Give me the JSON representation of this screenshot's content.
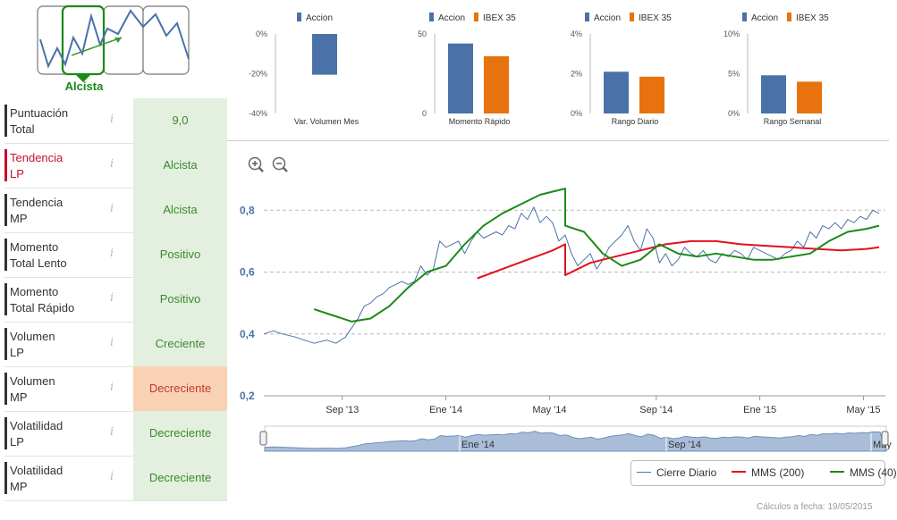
{
  "trend_widget": {
    "label": "Alcista"
  },
  "indicators": [
    {
      "label": "Puntuación Total",
      "line1": "Puntuación",
      "line2": "Total",
      "value": "9,0",
      "status": "green",
      "highlight": false
    },
    {
      "label": "Tendencia LP",
      "line1": "Tendencia",
      "line2": "LP",
      "value": "Alcista",
      "status": "green",
      "highlight": true
    },
    {
      "label": "Tendencia MP",
      "line1": "Tendencia",
      "line2": "MP",
      "value": "Alcista",
      "status": "green",
      "highlight": false
    },
    {
      "label": "Momento Total Lento",
      "line1": "Momento",
      "line2": "Total Lento",
      "value": "Positivo",
      "status": "green",
      "highlight": false
    },
    {
      "label": "Momento Total Rápido",
      "line1": "Momento",
      "line2": "Total Rápido",
      "value": "Positivo",
      "status": "green",
      "highlight": false
    },
    {
      "label": "Volumen LP",
      "line1": "Volumen",
      "line2": "LP",
      "value": "Creciente",
      "status": "green",
      "highlight": false
    },
    {
      "label": "Volumen MP",
      "line1": "Volumen",
      "line2": "MP",
      "value": "Decreciente",
      "status": "orange",
      "highlight": false
    },
    {
      "label": "Volatilidad LP",
      "line1": "Volatilidad",
      "line2": "LP",
      "value": "Decreciente",
      "status": "green",
      "highlight": false
    },
    {
      "label": "Volatilidad MP",
      "line1": "Volatilidad",
      "line2": "MP",
      "value": "Decreciente",
      "status": "green",
      "highlight": false
    }
  ],
  "info_icon": "i",
  "colors": {
    "accion": "#4a72a8",
    "ibex": "#e8730e",
    "price": "#4a72a8",
    "mms200": "#e3101f",
    "mms40": "#1a8a16"
  },
  "chart_data": [
    {
      "type": "bar",
      "title": "Var. Volumen Mes",
      "series": [
        {
          "name": "Accion",
          "values": [
            -20.5
          ]
        }
      ],
      "yticks": [
        "0%",
        "-20%",
        "-40%"
      ],
      "ylim": [
        -40,
        0
      ]
    },
    {
      "type": "bar",
      "title": "Momento Rápido",
      "series": [
        {
          "name": "Accion",
          "values": [
            44
          ]
        },
        {
          "name": "IBEX 35",
          "values": [
            36
          ]
        }
      ],
      "yticks": [
        "50",
        "0"
      ],
      "ylim": [
        0,
        50
      ]
    },
    {
      "type": "bar",
      "title": "Rango Diario",
      "series": [
        {
          "name": "Accion",
          "values": [
            2.1
          ]
        },
        {
          "name": "IBEX 35",
          "values": [
            1.85
          ]
        }
      ],
      "yticks": [
        "4%",
        "2%",
        "0%"
      ],
      "ylim": [
        0,
        4
      ]
    },
    {
      "type": "bar",
      "title": "Rango Semanal",
      "series": [
        {
          "name": "Accion",
          "values": [
            4.8
          ]
        },
        {
          "name": "IBEX 35",
          "values": [
            4.0
          ]
        }
      ],
      "yticks": [
        "10%",
        "5%",
        "0%"
      ],
      "ylim": [
        0,
        10
      ]
    },
    {
      "type": "line",
      "title": "",
      "xlabel": "",
      "ylabel": "",
      "ylim": [
        0.2,
        0.85
      ],
      "yticks": [
        "0,8",
        "0,6",
        "0,4",
        "0,2"
      ],
      "xticks": [
        "Sep '13",
        "Ene '14",
        "May '14",
        "Sep '14",
        "Ene '15",
        "May '15"
      ],
      "xlim": [
        2013.42,
        2015.4
      ],
      "series": [
        {
          "name": "Cierre Diario",
          "x": [
            2013.42,
            2013.45,
            2013.48,
            2013.52,
            2013.55,
            2013.58,
            2013.62,
            2013.65,
            2013.68,
            2013.7,
            2013.72,
            2013.74,
            2013.76,
            2013.78,
            2013.8,
            2013.82,
            2013.84,
            2013.86,
            2013.88,
            2013.9,
            2013.92,
            2013.94,
            2013.96,
            2013.98,
            2014.0,
            2014.02,
            2014.04,
            2014.06,
            2014.08,
            2014.1,
            2014.12,
            2014.14,
            2014.16,
            2014.18,
            2014.2,
            2014.22,
            2014.24,
            2014.26,
            2014.28,
            2014.3,
            2014.32,
            2014.34,
            2014.36,
            2014.38,
            2014.4,
            2014.42,
            2014.44,
            2014.46,
            2014.48,
            2014.5,
            2014.52,
            2014.54,
            2014.56,
            2014.58,
            2014.6,
            2014.62,
            2014.64,
            2014.66,
            2014.68,
            2014.7,
            2014.72,
            2014.74,
            2014.76,
            2014.78,
            2014.8,
            2014.82,
            2014.84,
            2014.86,
            2014.88,
            2014.9,
            2014.92,
            2014.94,
            2014.96,
            2014.98,
            2015.0,
            2015.02,
            2015.04,
            2015.06,
            2015.08,
            2015.1,
            2015.12,
            2015.14,
            2015.16,
            2015.18,
            2015.2,
            2015.22,
            2015.24,
            2015.26,
            2015.28,
            2015.3,
            2015.32,
            2015.34,
            2015.36,
            2015.38
          ],
          "y": [
            0.4,
            0.41,
            0.4,
            0.39,
            0.38,
            0.37,
            0.38,
            0.37,
            0.39,
            0.42,
            0.45,
            0.49,
            0.5,
            0.52,
            0.53,
            0.55,
            0.56,
            0.57,
            0.56,
            0.57,
            0.62,
            0.59,
            0.61,
            0.7,
            0.68,
            0.69,
            0.7,
            0.66,
            0.7,
            0.73,
            0.71,
            0.72,
            0.73,
            0.72,
            0.75,
            0.74,
            0.79,
            0.77,
            0.81,
            0.76,
            0.78,
            0.76,
            0.7,
            0.72,
            0.66,
            0.62,
            0.64,
            0.66,
            0.61,
            0.64,
            0.68,
            0.7,
            0.72,
            0.75,
            0.7,
            0.67,
            0.74,
            0.71,
            0.63,
            0.66,
            0.62,
            0.64,
            0.68,
            0.66,
            0.65,
            0.67,
            0.64,
            0.63,
            0.66,
            0.65,
            0.67,
            0.66,
            0.64,
            0.68,
            0.67,
            0.66,
            0.65,
            0.64,
            0.66,
            0.67,
            0.7,
            0.68,
            0.73,
            0.71,
            0.75,
            0.74,
            0.76,
            0.74,
            0.77,
            0.76,
            0.78,
            0.77,
            0.8,
            0.79
          ]
        },
        {
          "name": "MMS (200)",
          "x": [
            2014.1,
            2014.18,
            2014.26,
            2014.34,
            2014.38,
            2014.38,
            2014.46,
            2014.54,
            2014.62,
            2014.7,
            2014.78,
            2014.86,
            2014.94,
            2015.02,
            2015.1,
            2015.18,
            2015.26,
            2015.34,
            2015.38
          ],
          "y": [
            0.58,
            0.61,
            0.64,
            0.67,
            0.69,
            0.59,
            0.63,
            0.65,
            0.67,
            0.69,
            0.7,
            0.7,
            0.69,
            0.685,
            0.68,
            0.675,
            0.67,
            0.675,
            0.68
          ]
        },
        {
          "name": "MMS (40)",
          "x": [
            2013.58,
            2013.64,
            2013.7,
            2013.76,
            2013.82,
            2013.88,
            2013.94,
            2014.0,
            2014.06,
            2014.12,
            2014.18,
            2014.24,
            2014.3,
            2014.34,
            2014.38,
            2014.38,
            2014.44,
            2014.5,
            2014.56,
            2014.62,
            2014.68,
            2014.74,
            2014.8,
            2014.86,
            2014.92,
            2014.98,
            2015.04,
            2015.1,
            2015.16,
            2015.22,
            2015.28,
            2015.34,
            2015.38
          ],
          "y": [
            0.48,
            0.46,
            0.44,
            0.45,
            0.49,
            0.55,
            0.6,
            0.62,
            0.69,
            0.75,
            0.79,
            0.82,
            0.85,
            0.86,
            0.87,
            0.75,
            0.73,
            0.66,
            0.62,
            0.64,
            0.69,
            0.66,
            0.65,
            0.66,
            0.65,
            0.64,
            0.64,
            0.65,
            0.66,
            0.7,
            0.73,
            0.74,
            0.75
          ]
        }
      ],
      "legend": [
        "Cierre Diario",
        "MMS (200)",
        "MMS (40)"
      ]
    }
  ],
  "navigator": {
    "labels": [
      "Ene '14",
      "Sep '14",
      "May"
    ]
  },
  "footer": {
    "text": "Cálculos a fecha: 19/05/2015"
  }
}
